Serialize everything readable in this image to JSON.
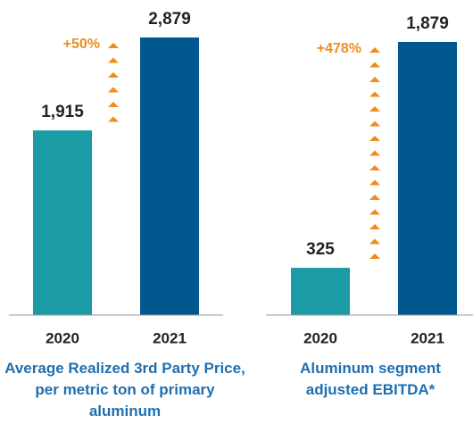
{
  "chart_data": [
    {
      "type": "bar",
      "title": "Average Realized 3rd Party Price, per metric ton of primary aluminum",
      "categories": [
        "2020",
        "2021"
      ],
      "values": [
        1915,
        2879
      ],
      "value_labels": [
        "1,915",
        "2,879"
      ],
      "colors": [
        "#1a9ba5",
        "#00588f"
      ],
      "annotation": "+50%",
      "annotation_color": "#f08c1e"
    },
    {
      "type": "bar",
      "title": "Aluminum segment adjusted EBITDA*",
      "categories": [
        "2020",
        "2021"
      ],
      "values": [
        325,
        1879
      ],
      "value_labels": [
        "325",
        "1,879"
      ],
      "colors": [
        "#1a9ba5",
        "#00588f"
      ],
      "annotation": "+478%",
      "annotation_color": "#f08c1e"
    }
  ]
}
